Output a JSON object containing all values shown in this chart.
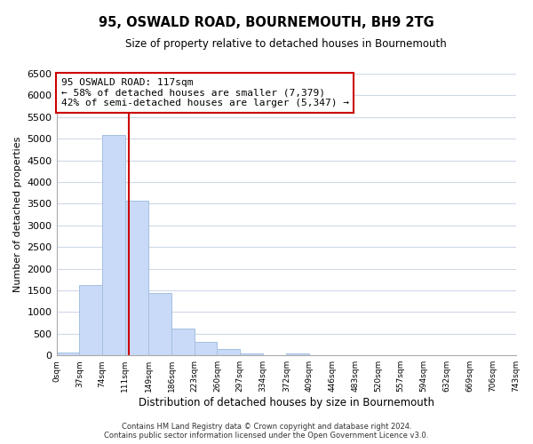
{
  "title": "95, OSWALD ROAD, BOURNEMOUTH, BH9 2TG",
  "subtitle": "Size of property relative to detached houses in Bournemouth",
  "xlabel": "Distribution of detached houses by size in Bournemouth",
  "ylabel": "Number of detached properties",
  "bar_edges": [
    0,
    37,
    74,
    111,
    149,
    186,
    223,
    260,
    297,
    334,
    372,
    409,
    446,
    483,
    520,
    557,
    594,
    632,
    669,
    706,
    743
  ],
  "bar_heights": [
    75,
    1630,
    5080,
    3580,
    1430,
    620,
    310,
    155,
    55,
    0,
    50,
    0,
    0,
    0,
    0,
    0,
    0,
    0,
    0,
    0
  ],
  "bar_color": "#c9daf8",
  "bar_edge_color": "#a4bfe0",
  "vline_x": 117,
  "vline_color": "#cc0000",
  "ylim": [
    0,
    6500
  ],
  "yticks": [
    0,
    500,
    1000,
    1500,
    2000,
    2500,
    3000,
    3500,
    4000,
    4500,
    5000,
    5500,
    6000,
    6500
  ],
  "annotation_title": "95 OSWALD ROAD: 117sqm",
  "annotation_line1": "← 58% of detached houses are smaller (7,379)",
  "annotation_line2": "42% of semi-detached houses are larger (5,347) →",
  "annotation_box_color": "#ffffff",
  "annotation_box_edge": "#cc0000",
  "footer_line1": "Contains HM Land Registry data © Crown copyright and database right 2024.",
  "footer_line2": "Contains public sector information licensed under the Open Government Licence v3.0.",
  "tick_labels": [
    "0sqm",
    "37sqm",
    "74sqm",
    "111sqm",
    "149sqm",
    "186sqm",
    "223sqm",
    "260sqm",
    "297sqm",
    "334sqm",
    "372sqm",
    "409sqm",
    "446sqm",
    "483sqm",
    "520sqm",
    "557sqm",
    "594sqm",
    "632sqm",
    "669sqm",
    "706sqm",
    "743sqm"
  ],
  "background_color": "#ffffff",
  "grid_color": "#d0d8e8"
}
